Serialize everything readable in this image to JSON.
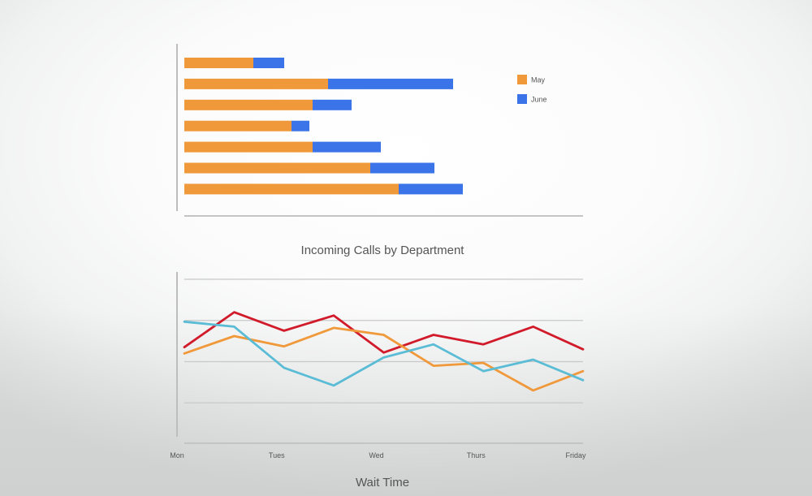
{
  "chart_data": [
    {
      "type": "bar",
      "orientation": "horizontal",
      "stacked": true,
      "title": "Incoming Calls by Department",
      "categories": [
        "",
        "",
        "",
        "",
        "",
        "",
        ""
      ],
      "series": [
        {
          "name": "May",
          "color": "#f0993a",
          "values": [
            85,
            177,
            158,
            132,
            158,
            229,
            264
          ]
        },
        {
          "name": "June",
          "color": "#3b74e8",
          "values": [
            38,
            154,
            48,
            22,
            84,
            79,
            79
          ]
        }
      ],
      "xlim": [
        0,
        490
      ],
      "legend": "top-right",
      "grid": false
    },
    {
      "type": "line",
      "title": "Wait Time",
      "x": [
        "Mon",
        "",
        "Tues",
        "",
        "Wed",
        "",
        "Thurs",
        "",
        "Friday"
      ],
      "x_tick_labels": [
        "Mon",
        "Tues",
        "Wed",
        "Thurs",
        "Friday"
      ],
      "ylim": [
        0,
        4
      ],
      "grid": true,
      "series": [
        {
          "color": "#d11a2a",
          "values": [
            2.35,
            3.2,
            2.75,
            3.12,
            2.22,
            2.65,
            2.42,
            2.85,
            2.3
          ]
        },
        {
          "color": "#f0993a",
          "values": [
            2.2,
            2.62,
            2.37,
            2.82,
            2.65,
            1.9,
            1.97,
            1.3,
            1.77
          ]
        },
        {
          "color": "#5bbcd6",
          "values": [
            2.97,
            2.85,
            1.85,
            1.42,
            2.1,
            2.42,
            1.77,
            2.05,
            1.55
          ]
        }
      ]
    }
  ]
}
